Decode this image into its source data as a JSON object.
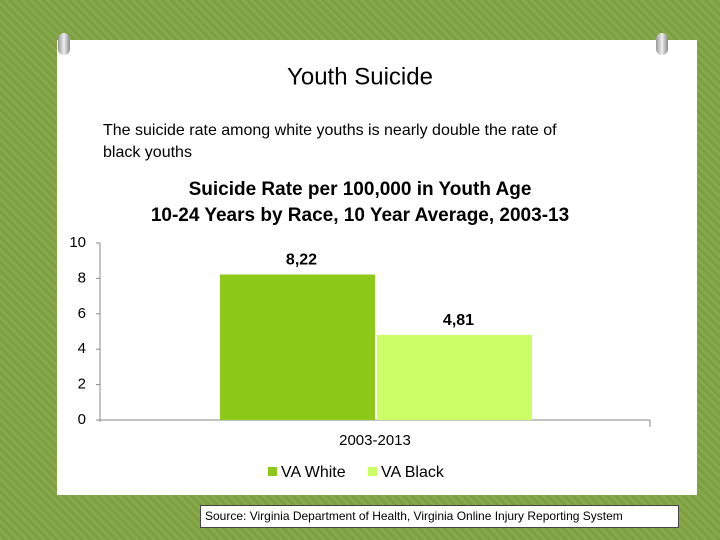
{
  "slide_title": "Youth Suicide",
  "subtitle": "The suicide rate among white youths is nearly double the rate of black youths",
  "source": "Source: Virginia Department of Health, Virginia Online Injury Reporting System",
  "chart_data": {
    "type": "bar",
    "title": "Suicide Rate per 100,000 in Youth Age 10-24 Years by Race, 10 Year Average, 2003-13",
    "categories": [
      "2003-2013"
    ],
    "series": [
      {
        "name": "VA White",
        "color": "#8cc919",
        "values": [
          8.22
        ],
        "value_labels": [
          "8,22"
        ]
      },
      {
        "name": "VA Black",
        "color": "#ccff66",
        "values": [
          4.81
        ],
        "value_labels": [
          "4,81"
        ]
      }
    ],
    "ylim": [
      0,
      10
    ],
    "yticks": [
      0,
      2,
      4,
      6,
      8,
      10
    ],
    "grid": false,
    "legend": "bottom"
  }
}
